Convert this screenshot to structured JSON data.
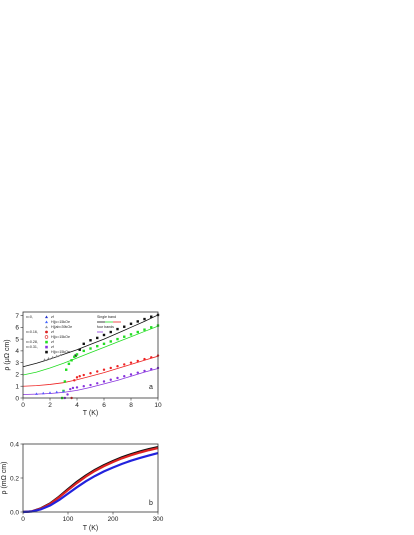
{
  "chart_data": [
    {
      "panel": "a",
      "type": "scatter",
      "xlabel": "T (K)",
      "ylabel": "ρ (μΩ cm)",
      "xlim": [
        0,
        10
      ],
      "ylim": [
        0,
        7.3
      ],
      "x_ticks": [
        "0",
        "2",
        "4",
        "6",
        "8",
        "10"
      ],
      "y_ticks": [
        "0",
        "1",
        "2",
        "3",
        "4",
        "5",
        "6",
        "7"
      ],
      "panel_label": "a",
      "legend_lines": {
        "single_band": "Single band",
        "four_bands": "four bands"
      },
      "legend_groups": [
        {
          "x_label": "x=0,",
          "field_labels": [
            "zf",
            "H||c=15kOe",
            "H||ab=39kOe"
          ]
        },
        {
          "x_label": "x=0.16,",
          "field_labels": [
            "zf",
            "H||c=15kOe"
          ]
        },
        {
          "x_label": "x=0.28,",
          "field_labels": [
            "zf"
          ]
        },
        {
          "x_label": "x=0.31,",
          "field_labels": [
            "zf",
            "H||c=15kOe"
          ]
        }
      ],
      "series": [
        {
          "color": "#111111",
          "marker": "square",
          "x": [
            3.9,
            4.2,
            4.5,
            5,
            5.5,
            6,
            6.5,
            7,
            7.5,
            8,
            8.5,
            9,
            9.5,
            10
          ],
          "y": [
            3.6,
            4.1,
            4.6,
            4.9,
            5.1,
            5.35,
            5.6,
            5.85,
            6.05,
            6.3,
            6.5,
            6.7,
            6.9,
            7.05
          ]
        },
        {
          "color": "#22dd22",
          "marker": "square",
          "x": [
            2.9,
            3.0,
            3.1,
            3.2,
            3.4,
            3.6,
            3.8,
            4.0,
            4.5,
            5,
            5.5,
            6,
            6.5,
            7,
            7.5,
            8,
            8.5,
            9,
            9.5,
            10
          ],
          "y": [
            0.0,
            0.6,
            1.4,
            2.4,
            2.9,
            3.2,
            3.5,
            3.7,
            4.0,
            4.2,
            4.4,
            4.6,
            4.8,
            5.0,
            5.2,
            5.4,
            5.6,
            5.8,
            6.0,
            6.15
          ]
        },
        {
          "color": "#ee2222",
          "marker": "circle",
          "x": [
            3.6,
            3.8,
            4.0,
            4.2,
            4.5,
            5,
            5.5,
            6,
            6.5,
            7,
            7.5,
            8,
            8.5,
            9,
            9.5,
            10
          ],
          "y": [
            0.0,
            1.5,
            1.75,
            1.85,
            1.95,
            2.1,
            2.25,
            2.4,
            2.55,
            2.7,
            2.85,
            3.0,
            3.15,
            3.3,
            3.45,
            3.6
          ]
        },
        {
          "color": "#8833dd",
          "marker": "circle",
          "x": [
            3.1,
            3.3,
            3.5,
            3.7,
            4.0,
            4.5,
            5,
            5.5,
            6,
            6.5,
            7,
            7.5,
            8,
            8.5,
            9,
            9.5,
            10
          ],
          "y": [
            0.0,
            0.3,
            0.75,
            0.85,
            0.9,
            1.0,
            1.1,
            1.25,
            1.4,
            1.55,
            1.7,
            1.85,
            2.0,
            2.15,
            2.3,
            2.45,
            2.55
          ]
        },
        {
          "color": "#888888",
          "marker": "triangle",
          "x": [
            1.6,
            1.9,
            2.2,
            2.5,
            2.8
          ],
          "y": [
            3.25,
            3.35,
            3.45,
            3.55,
            3.65
          ]
        },
        {
          "color": "#5555ff",
          "marker": "triangle",
          "x": [
            1.0,
            1.5,
            2.0,
            2.5,
            3.0
          ],
          "y": [
            0.35,
            0.4,
            0.45,
            0.5,
            0.55
          ]
        }
      ],
      "fit_curves": [
        {
          "color": "#111111",
          "x": [
            0,
            1,
            2,
            3,
            4,
            5,
            6,
            7,
            8,
            9,
            10
          ],
          "y": [
            2.65,
            2.95,
            3.3,
            3.7,
            4.1,
            4.55,
            5.0,
            5.5,
            6.0,
            6.5,
            7.05
          ]
        },
        {
          "color": "#22dd22",
          "x": [
            0,
            1,
            2,
            3,
            4,
            5,
            6,
            7,
            8,
            9,
            10
          ],
          "y": [
            1.95,
            2.2,
            2.55,
            2.95,
            3.4,
            3.85,
            4.3,
            4.75,
            5.2,
            5.65,
            6.1
          ]
        },
        {
          "color": "#ee2222",
          "x": [
            0,
            1,
            2,
            3,
            4,
            5,
            6,
            7,
            8,
            9,
            10
          ],
          "y": [
            1.0,
            1.05,
            1.15,
            1.3,
            1.55,
            1.85,
            2.15,
            2.5,
            2.85,
            3.2,
            3.55
          ]
        },
        {
          "color": "#8833dd",
          "x": [
            0,
            1,
            2,
            3,
            4,
            5,
            6,
            7,
            8,
            9,
            10
          ],
          "y": [
            0.3,
            0.33,
            0.38,
            0.48,
            0.65,
            0.9,
            1.2,
            1.5,
            1.85,
            2.2,
            2.5
          ]
        }
      ]
    },
    {
      "panel": "b",
      "type": "line",
      "xlabel": "T (K)",
      "ylabel": "ρ (mΩ cm)",
      "xlim": [
        0,
        300
      ],
      "ylim": [
        0,
        0.4
      ],
      "x_ticks": [
        "0",
        "100",
        "200",
        "300"
      ],
      "y_ticks": [
        "0.0",
        "0.2",
        "0.4"
      ],
      "panel_label": "b",
      "series": [
        {
          "color": "#111111",
          "x": [
            0,
            20,
            40,
            60,
            80,
            100,
            120,
            140,
            160,
            180,
            200,
            220,
            240,
            260,
            280,
            300
          ],
          "y": [
            0.0,
            0.004,
            0.022,
            0.05,
            0.09,
            0.135,
            0.178,
            0.215,
            0.248,
            0.276,
            0.3,
            0.322,
            0.34,
            0.356,
            0.37,
            0.382
          ]
        },
        {
          "color": "#dd2222",
          "x": [
            0,
            20,
            40,
            60,
            80,
            100,
            120,
            140,
            160,
            180,
            200,
            220,
            240,
            260,
            280,
            300
          ],
          "y": [
            0.0,
            0.004,
            0.02,
            0.047,
            0.086,
            0.129,
            0.171,
            0.209,
            0.242,
            0.27,
            0.294,
            0.316,
            0.334,
            0.35,
            0.364,
            0.376
          ]
        },
        {
          "color": "#2222dd",
          "x": [
            0,
            20,
            40,
            60,
            80,
            100,
            120,
            140,
            160,
            180,
            200,
            220,
            240,
            260,
            280,
            300
          ],
          "y": [
            0.0,
            0.003,
            0.016,
            0.038,
            0.07,
            0.108,
            0.146,
            0.181,
            0.212,
            0.239,
            0.262,
            0.283,
            0.302,
            0.318,
            0.333,
            0.347
          ]
        }
      ]
    }
  ]
}
